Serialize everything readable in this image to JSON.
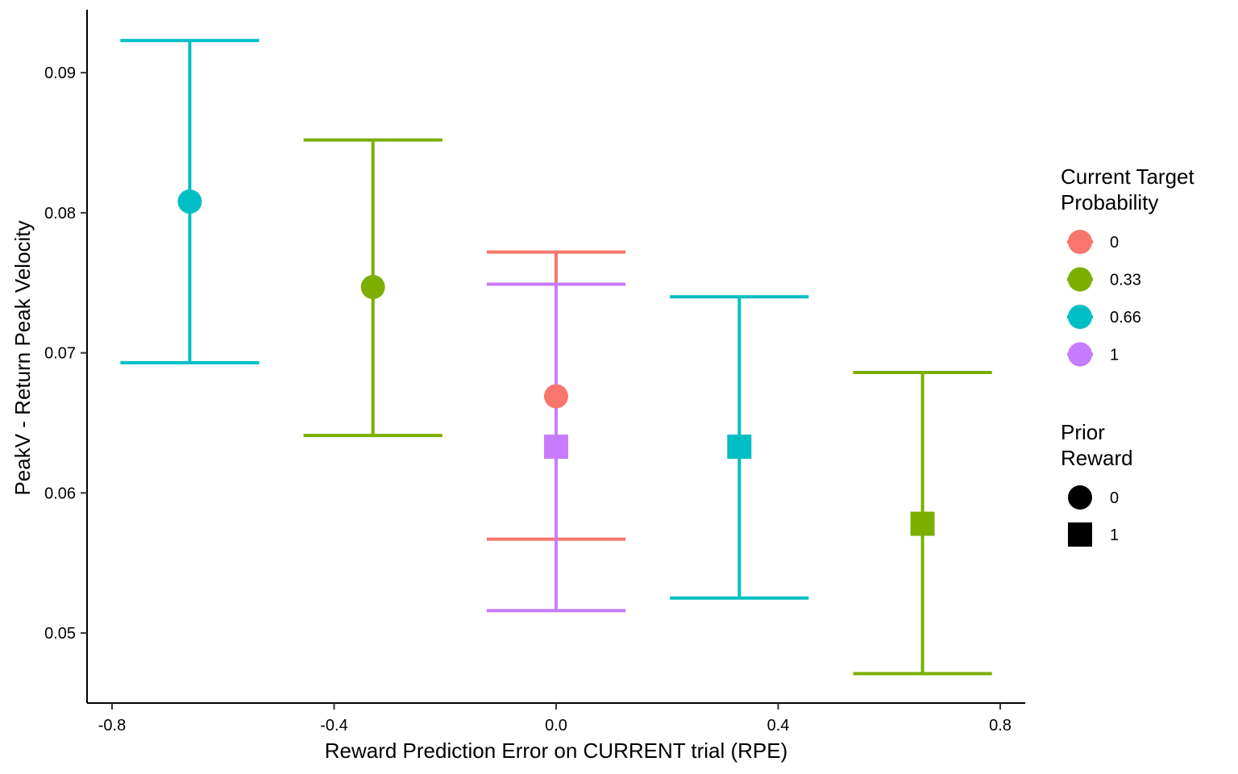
{
  "chart_data": {
    "type": "scatter",
    "title": "",
    "xlabel": "Reward Prediction Error on CURRENT trial (RPE)",
    "ylabel": "PeakV - Return Peak Velocity",
    "xlim": [
      -0.845,
      0.845
    ],
    "ylim": [
      0.045,
      0.0945
    ],
    "xticks": [
      -0.8,
      -0.4,
      0.0,
      0.4,
      0.8
    ],
    "xtick_labels": [
      "-0.8",
      "-0.4",
      "0.0",
      "0.4",
      "0.8"
    ],
    "yticks": [
      0.05,
      0.06,
      0.07,
      0.08,
      0.09
    ],
    "ytick_labels": [
      "0.05",
      "0.06",
      "0.07",
      "0.08",
      "0.09"
    ],
    "grid": false,
    "legend_position": "right",
    "color_legend": {
      "title": [
        "Current Target",
        "Probability"
      ],
      "entries": [
        {
          "label": "0",
          "color": "#F8766D"
        },
        {
          "label": "0.33",
          "color": "#7CAE00"
        },
        {
          "label": "0.66",
          "color": "#00BFC4"
        },
        {
          "label": "1",
          "color": "#C77CFF"
        }
      ]
    },
    "shape_legend": {
      "title": [
        "Prior",
        "Reward"
      ],
      "entries": [
        {
          "label": "0",
          "shape": "circle"
        },
        {
          "label": "1",
          "shape": "square"
        }
      ]
    },
    "points": [
      {
        "x": -0.66,
        "y": 0.0808,
        "ymin": 0.0693,
        "ymax": 0.0923,
        "probability": "0.66",
        "prior_reward": "0"
      },
      {
        "x": -0.33,
        "y": 0.0747,
        "ymin": 0.0641,
        "ymax": 0.0852,
        "probability": "0.33",
        "prior_reward": "0"
      },
      {
        "x": 0.0,
        "y": 0.0669,
        "ymin": 0.0567,
        "ymax": 0.0772,
        "probability": "0",
        "prior_reward": "0"
      },
      {
        "x": 0.0,
        "y": 0.0633,
        "ymin": 0.0516,
        "ymax": 0.0749,
        "probability": "1",
        "prior_reward": "1"
      },
      {
        "x": 0.33,
        "y": 0.0633,
        "ymin": 0.0525,
        "ymax": 0.074,
        "probability": "0.66",
        "prior_reward": "1"
      },
      {
        "x": 0.66,
        "y": 0.0578,
        "ymin": 0.0471,
        "ymax": 0.0686,
        "probability": "0.33",
        "prior_reward": "1"
      }
    ]
  }
}
